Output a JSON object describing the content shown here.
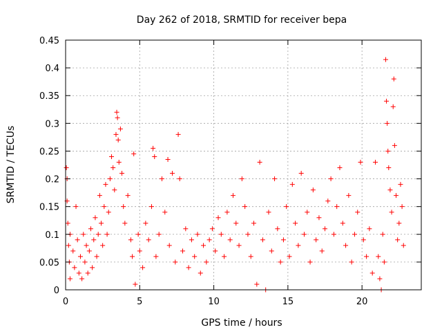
{
  "chart_data": {
    "type": "scatter",
    "title": "Day 262 of 2018, SRMTID for receiver bepa",
    "xlabel": "GPS time / hours",
    "ylabel": "SRMTID / TECUs",
    "xlim": [
      0,
      24
    ],
    "ylim": [
      0,
      0.45
    ],
    "x_ticks": [
      0,
      5,
      10,
      15,
      20
    ],
    "x_tick_labels": [
      "0",
      "5",
      "10",
      "15",
      "20"
    ],
    "y_ticks": [
      0,
      0.05,
      0.1,
      0.15,
      0.2,
      0.25,
      0.3,
      0.35,
      0.4,
      0.45
    ],
    "y_tick_labels": [
      "0",
      "0.05",
      "0.1",
      "0.15",
      "0.2",
      "0.25",
      "0.3",
      "0.35",
      "0.4",
      "0.45"
    ],
    "grid": true,
    "marker": "+",
    "color": "#ff0000",
    "series": [
      {
        "name": "SRMTID",
        "points": [
          [
            0.05,
            0.22
          ],
          [
            0.1,
            0.2
          ],
          [
            0.1,
            0.16
          ],
          [
            0.15,
            0.12
          ],
          [
            0.2,
            0.08
          ],
          [
            0.25,
            0.05
          ],
          [
            0.3,
            0.02
          ],
          [
            0.3,
            0.1
          ],
          [
            0.5,
            0.07
          ],
          [
            0.6,
            0.04
          ],
          [
            0.7,
            0.15
          ],
          [
            0.8,
            0.09
          ],
          [
            0.9,
            0.03
          ],
          [
            1.0,
            0.06
          ],
          [
            1.1,
            0.02
          ],
          [
            1.2,
            0.1
          ],
          [
            1.3,
            0.05
          ],
          [
            1.4,
            0.08
          ],
          [
            1.5,
            0.03
          ],
          [
            1.6,
            0.07
          ],
          [
            1.7,
            0.11
          ],
          [
            1.8,
            0.04
          ],
          [
            1.9,
            0.09
          ],
          [
            2.0,
            0.13
          ],
          [
            2.1,
            0.06
          ],
          [
            2.2,
            0.1
          ],
          [
            2.3,
            0.17
          ],
          [
            2.4,
            0.12
          ],
          [
            2.5,
            0.08
          ],
          [
            2.6,
            0.15
          ],
          [
            2.7,
            0.19
          ],
          [
            2.8,
            0.1
          ],
          [
            2.9,
            0.14
          ],
          [
            3.0,
            0.2
          ],
          [
            3.1,
            0.24
          ],
          [
            3.2,
            0.22
          ],
          [
            3.3,
            0.18
          ],
          [
            3.4,
            0.28
          ],
          [
            3.45,
            0.32
          ],
          [
            3.5,
            0.31
          ],
          [
            3.55,
            0.27
          ],
          [
            3.6,
            0.23
          ],
          [
            3.7,
            0.29
          ],
          [
            3.8,
            0.21
          ],
          [
            3.9,
            0.15
          ],
          [
            4.0,
            0.12
          ],
          [
            4.2,
            0.17
          ],
          [
            4.4,
            0.09
          ],
          [
            4.5,
            0.06
          ],
          [
            4.6,
            0.245
          ],
          [
            4.7,
            0.01
          ],
          [
            4.9,
            0.1
          ],
          [
            5.0,
            0.07
          ],
          [
            5.2,
            0.04
          ],
          [
            5.4,
            0.12
          ],
          [
            5.6,
            0.09
          ],
          [
            5.8,
            0.15
          ],
          [
            5.9,
            0.255
          ],
          [
            6.0,
            0.24
          ],
          [
            6.1,
            0.06
          ],
          [
            6.3,
            0.1
          ],
          [
            6.5,
            0.2
          ],
          [
            6.7,
            0.14
          ],
          [
            6.9,
            0.235
          ],
          [
            7.0,
            0.08
          ],
          [
            7.2,
            0.21
          ],
          [
            7.4,
            0.05
          ],
          [
            7.6,
            0.28
          ],
          [
            7.7,
            0.2
          ],
          [
            7.9,
            0.07
          ],
          [
            8.1,
            0.11
          ],
          [
            8.3,
            0.04
          ],
          [
            8.5,
            0.09
          ],
          [
            8.7,
            0.06
          ],
          [
            8.9,
            0.1
          ],
          [
            9.1,
            0.03
          ],
          [
            9.3,
            0.08
          ],
          [
            9.5,
            0.05
          ],
          [
            9.7,
            0.09
          ],
          [
            9.9,
            0.11
          ],
          [
            10.1,
            0.07
          ],
          [
            10.3,
            0.13
          ],
          [
            10.5,
            0.1
          ],
          [
            10.7,
            0.06
          ],
          [
            10.9,
            0.14
          ],
          [
            11.1,
            0.09
          ],
          [
            11.3,
            0.17
          ],
          [
            11.5,
            0.12
          ],
          [
            11.7,
            0.08
          ],
          [
            11.9,
            0.2
          ],
          [
            12.1,
            0.15
          ],
          [
            12.3,
            0.1
          ],
          [
            12.5,
            0.06
          ],
          [
            12.7,
            0.12
          ],
          [
            12.9,
            0.01
          ],
          [
            13.1,
            0.23
          ],
          [
            13.3,
            0.09
          ],
          [
            13.5,
            0.0
          ],
          [
            13.7,
            0.14
          ],
          [
            13.9,
            0.07
          ],
          [
            14.1,
            0.2
          ],
          [
            14.3,
            0.11
          ],
          [
            14.5,
            0.05
          ],
          [
            14.7,
            0.09
          ],
          [
            14.9,
            0.15
          ],
          [
            15.1,
            0.06
          ],
          [
            15.3,
            0.19
          ],
          [
            15.5,
            0.12
          ],
          [
            15.7,
            0.08
          ],
          [
            15.9,
            0.21
          ],
          [
            16.1,
            0.1
          ],
          [
            16.3,
            0.14
          ],
          [
            16.5,
            0.05
          ],
          [
            16.7,
            0.18
          ],
          [
            16.9,
            0.09
          ],
          [
            17.1,
            0.13
          ],
          [
            17.3,
            0.07
          ],
          [
            17.5,
            0.11
          ],
          [
            17.7,
            0.16
          ],
          [
            17.9,
            0.2
          ],
          [
            18.1,
            0.1
          ],
          [
            18.3,
            0.15
          ],
          [
            18.5,
            0.22
          ],
          [
            18.7,
            0.12
          ],
          [
            18.9,
            0.08
          ],
          [
            19.1,
            0.17
          ],
          [
            19.3,
            0.05
          ],
          [
            19.5,
            0.1
          ],
          [
            19.7,
            0.14
          ],
          [
            19.9,
            0.23
          ],
          [
            20.1,
            0.09
          ],
          [
            20.3,
            0.06
          ],
          [
            20.5,
            0.11
          ],
          [
            20.7,
            0.03
          ],
          [
            20.9,
            0.23
          ],
          [
            21.1,
            0.06
          ],
          [
            21.2,
            0.02
          ],
          [
            21.3,
            0.0
          ],
          [
            21.4,
            0.1
          ],
          [
            21.5,
            0.05
          ],
          [
            21.6,
            0.415
          ],
          [
            21.65,
            0.34
          ],
          [
            21.7,
            0.3
          ],
          [
            21.75,
            0.25
          ],
          [
            21.8,
            0.22
          ],
          [
            21.9,
            0.18
          ],
          [
            22.0,
            0.14
          ],
          [
            22.1,
            0.33
          ],
          [
            22.15,
            0.38
          ],
          [
            22.2,
            0.26
          ],
          [
            22.3,
            0.17
          ],
          [
            22.4,
            0.09
          ],
          [
            22.5,
            0.12
          ],
          [
            22.6,
            0.19
          ],
          [
            22.7,
            0.15
          ],
          [
            22.8,
            0.08
          ]
        ]
      }
    ]
  }
}
